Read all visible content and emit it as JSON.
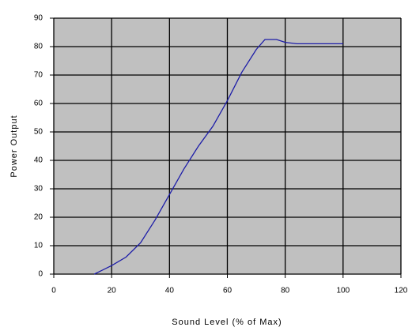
{
  "chart_data": {
    "type": "line",
    "x_label": "Sound Level (% of Max)",
    "y_label": "Power Output",
    "x": [
      14,
      20,
      25,
      30,
      35,
      40,
      45,
      50,
      55,
      60,
      65,
      70,
      73,
      77,
      80,
      84,
      90,
      100
    ],
    "series": [
      {
        "color": "#1c1ca8",
        "values": [
          0,
          3,
          6,
          11,
          19,
          28,
          37,
          45,
          52,
          61,
          71,
          79,
          82.5,
          82.5,
          81.5,
          81,
          81,
          81
        ]
      }
    ],
    "xlim": [
      0,
      120
    ],
    "ylim": [
      0,
      90
    ],
    "xticks": [
      0,
      20,
      40,
      60,
      80,
      100,
      120
    ],
    "yticks": [
      0,
      10,
      20,
      30,
      40,
      50,
      60,
      70,
      80,
      90
    ],
    "grid": true
  }
}
